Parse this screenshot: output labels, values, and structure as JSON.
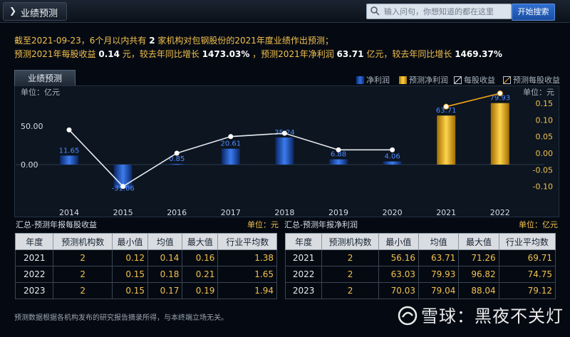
{
  "header": {
    "title": "业绩预测",
    "search_placeholder": "输入问句，你想知道的都在这里",
    "search_button": "开始搜索"
  },
  "summary": {
    "l1_a": "截至2021-09-23，6个月以内共有",
    "l1_count": "2",
    "l1_b": "家机构对包钢股份的2021年度业绩作出预测；",
    "l2_a": "预测2021年每股收益",
    "l2_eps": "0.14",
    "l2_b": "元，较去年同比增长",
    "l2_eps_growth": "1473.03%",
    "l2_c": "，预测2021年净利润",
    "l2_np": "63.71",
    "l2_d": "亿元，较去年同比增长",
    "l2_np_growth": "1469.37%"
  },
  "panel": {
    "tab_label": "业绩预测",
    "legend": {
      "net_profit": "净利润",
      "forecast_net_profit": "预测净利润",
      "eps": "每股收益",
      "forecast_eps": "预测每股收益"
    },
    "unit_left": "单位：亿元",
    "unit_right": "单位：元"
  },
  "chart_data": {
    "type": "bar",
    "categories": [
      "2014",
      "2015",
      "2016",
      "2017",
      "2018",
      "2019",
      "2020",
      "2021",
      "2022"
    ],
    "series": [
      {
        "name": "净利润",
        "values": [
          11.65,
          -31.06,
          0.85,
          20.61,
          35.24,
          6.88,
          4.06,
          null,
          null
        ],
        "color": "#2f6ee0",
        "axis": "left"
      },
      {
        "name": "预测净利润",
        "values": [
          null,
          null,
          null,
          null,
          null,
          null,
          null,
          63.71,
          79.93
        ],
        "color": "#ffc21f",
        "axis": "left"
      },
      {
        "name": "每股收益",
        "values": [
          0.07,
          -0.1,
          0.0,
          0.05,
          0.06,
          0.01,
          0.01,
          null,
          null
        ],
        "color": "#e6ebf0",
        "axis": "right"
      },
      {
        "name": "预测每股收益",
        "values": [
          null,
          null,
          null,
          null,
          null,
          null,
          0.01,
          0.14,
          0.18
        ],
        "color": "#f2a41a",
        "axis": "right"
      }
    ],
    "bar_labels": [
      "11.65",
      "-31.06",
      "0.85",
      "20.61",
      "35.24",
      "6.88",
      "4.06",
      "63.71",
      "79.93"
    ],
    "left_axis": {
      "ticks": [
        "50.00",
        "0.00"
      ],
      "ylim": [
        -40,
        95
      ]
    },
    "right_axis": {
      "ticks": [
        "0.15",
        "0.10",
        "0.05",
        "0.00",
        "-0.05",
        "-0.10"
      ],
      "ylim": [
        -0.125,
        0.17
      ]
    }
  },
  "eps_table": {
    "title": "汇总-预测年报每股收益",
    "unit": "单位：元",
    "headers": [
      "年度",
      "预测机构数",
      "最小值",
      "均值",
      "最大值",
      "行业平均数"
    ],
    "rows": [
      [
        "2021",
        "2",
        "0.12",
        "0.14",
        "0.16",
        "1.38"
      ],
      [
        "2022",
        "2",
        "0.15",
        "0.18",
        "0.21",
        "1.65"
      ],
      [
        "2023",
        "2",
        "0.15",
        "0.17",
        "0.19",
        "1.94"
      ]
    ]
  },
  "np_table": {
    "title": "汇总-预测年报净利润",
    "unit": "单位：亿元",
    "headers": [
      "年度",
      "预测机构数",
      "最小值",
      "均值",
      "最大值",
      "行业平均数"
    ],
    "rows": [
      [
        "2021",
        "2",
        "56.16",
        "63.71",
        "71.26",
        "69.71"
      ],
      [
        "2022",
        "2",
        "63.03",
        "79.93",
        "96.82",
        "74.75"
      ],
      [
        "2023",
        "2",
        "70.03",
        "79.04",
        "88.04",
        "79.12"
      ]
    ]
  },
  "footnote": "预测数据根据各机构发布的研究报告摘录所得，与本终端立场无关。",
  "watermark": "雪球：黑夜不关灯"
}
